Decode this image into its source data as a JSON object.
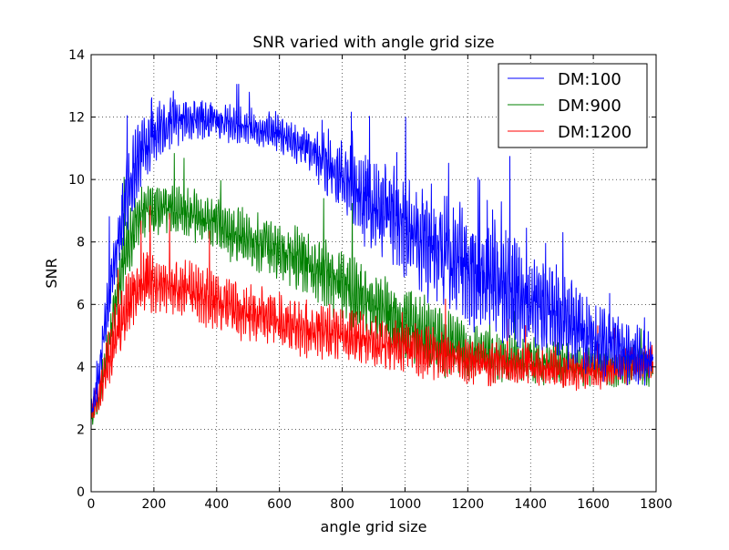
{
  "chart_data": {
    "type": "line",
    "title": "SNR varied with angle grid size",
    "xlabel": "angle grid size",
    "ylabel": "SNR",
    "xlim": [
      0,
      1800
    ],
    "ylim": [
      0,
      14
    ],
    "xticks": [
      0,
      200,
      400,
      600,
      800,
      1000,
      1200,
      1400,
      1600,
      1800
    ],
    "yticks": [
      0,
      2,
      4,
      6,
      8,
      10,
      12,
      14
    ],
    "grid": true,
    "legend_position": "top-right",
    "series": [
      {
        "name": "DM:100",
        "color": "#0000ff",
        "x": [
          0,
          20,
          40,
          60,
          80,
          100,
          120,
          140,
          160,
          180,
          200,
          250,
          300,
          350,
          400,
          450,
          500,
          550,
          600,
          650,
          700,
          750,
          800,
          850,
          900,
          950,
          1000,
          1050,
          1100,
          1150,
          1200,
          1250,
          1300,
          1350,
          1400,
          1450,
          1500,
          1550,
          1600,
          1650,
          1700,
          1750,
          1790
        ],
        "y": [
          2.5,
          3.3,
          5.0,
          6.5,
          7.8,
          8.8,
          9.8,
          10.4,
          10.9,
          11.2,
          11.5,
          11.8,
          11.9,
          11.9,
          11.8,
          11.8,
          11.7,
          11.6,
          11.5,
          11.2,
          10.9,
          10.5,
          10.0,
          9.6,
          9.2,
          8.9,
          8.5,
          8.2,
          7.8,
          7.5,
          7.2,
          6.9,
          6.7,
          6.4,
          6.1,
          5.9,
          5.6,
          5.2,
          4.9,
          4.7,
          4.5,
          4.3,
          4.2
        ],
        "noise": [
          0.4,
          0.5,
          0.8,
          1.0,
          1.1,
          1.2,
          1.3,
          1.3,
          1.2,
          1.0,
          0.9,
          0.8,
          0.7,
          0.6,
          0.6,
          0.6,
          0.6,
          0.6,
          0.6,
          0.7,
          0.8,
          1.0,
          1.2,
          1.4,
          1.5,
          1.6,
          1.7,
          1.8,
          1.9,
          1.9,
          1.9,
          1.9,
          1.8,
          1.7,
          1.6,
          1.5,
          1.5,
          1.3,
          1.2,
          1.1,
          1.0,
          0.9,
          0.8
        ]
      },
      {
        "name": "DM:900",
        "color": "#008000",
        "x": [
          0,
          20,
          40,
          60,
          80,
          100,
          120,
          140,
          160,
          180,
          200,
          250,
          300,
          350,
          400,
          450,
          500,
          550,
          600,
          650,
          700,
          750,
          800,
          850,
          900,
          950,
          1000,
          1050,
          1100,
          1150,
          1200,
          1250,
          1300,
          1350,
          1400,
          1450,
          1500,
          1550,
          1600,
          1650,
          1700,
          1750,
          1790
        ],
        "y": [
          2.3,
          2.8,
          3.8,
          5.0,
          6.2,
          7.2,
          8.0,
          8.5,
          8.9,
          9.0,
          9.0,
          9.0,
          8.9,
          8.8,
          8.6,
          8.3,
          8.1,
          7.9,
          7.7,
          7.5,
          7.2,
          6.9,
          6.6,
          6.3,
          6.0,
          5.7,
          5.4,
          5.1,
          4.9,
          4.7,
          4.5,
          4.4,
          4.3,
          4.2,
          4.2,
          4.1,
          4.1,
          4.0,
          4.0,
          4.0,
          4.0,
          4.0,
          4.0
        ],
        "noise": [
          0.3,
          0.4,
          0.6,
          0.8,
          0.9,
          1.0,
          1.0,
          0.9,
          0.8,
          0.8,
          0.8,
          0.8,
          0.8,
          0.8,
          0.8,
          0.9,
          0.9,
          0.9,
          0.9,
          1.0,
          1.0,
          1.1,
          1.1,
          1.2,
          1.2,
          1.2,
          1.2,
          1.2,
          1.1,
          1.0,
          0.9,
          0.8,
          0.8,
          0.7,
          0.7,
          0.7,
          0.7,
          0.6,
          0.6,
          0.6,
          0.6,
          0.6,
          0.6
        ]
      },
      {
        "name": "DM:1200",
        "color": "#ff0000",
        "x": [
          0,
          20,
          40,
          60,
          80,
          100,
          120,
          140,
          160,
          180,
          200,
          250,
          300,
          350,
          400,
          450,
          500,
          550,
          600,
          650,
          700,
          750,
          800,
          850,
          900,
          950,
          1000,
          1050,
          1100,
          1150,
          1200,
          1250,
          1300,
          1350,
          1400,
          1450,
          1500,
          1550,
          1600,
          1650,
          1700,
          1750,
          1790
        ],
        "y": [
          2.6,
          3.0,
          3.6,
          4.3,
          5.0,
          5.6,
          6.1,
          6.4,
          6.6,
          6.7,
          6.7,
          6.6,
          6.5,
          6.3,
          6.1,
          5.9,
          5.7,
          5.6,
          5.4,
          5.3,
          5.2,
          5.1,
          5.0,
          4.9,
          4.8,
          4.7,
          4.6,
          4.5,
          4.4,
          4.3,
          4.2,
          4.1,
          4.1,
          4.0,
          4.0,
          4.0,
          3.9,
          3.9,
          3.9,
          3.9,
          4.0,
          4.1,
          4.2
        ],
        "noise": [
          0.4,
          0.6,
          0.8,
          1.0,
          1.1,
          1.1,
          1.0,
          1.0,
          1.0,
          1.0,
          1.0,
          0.9,
          0.9,
          0.9,
          0.9,
          0.9,
          0.9,
          0.9,
          0.9,
          0.9,
          0.9,
          0.9,
          0.9,
          0.9,
          0.8,
          0.8,
          0.8,
          0.8,
          0.8,
          0.7,
          0.7,
          0.7,
          0.7,
          0.6,
          0.6,
          0.6,
          0.6,
          0.6,
          0.6,
          0.6,
          0.6,
          0.6,
          0.6
        ]
      }
    ]
  }
}
